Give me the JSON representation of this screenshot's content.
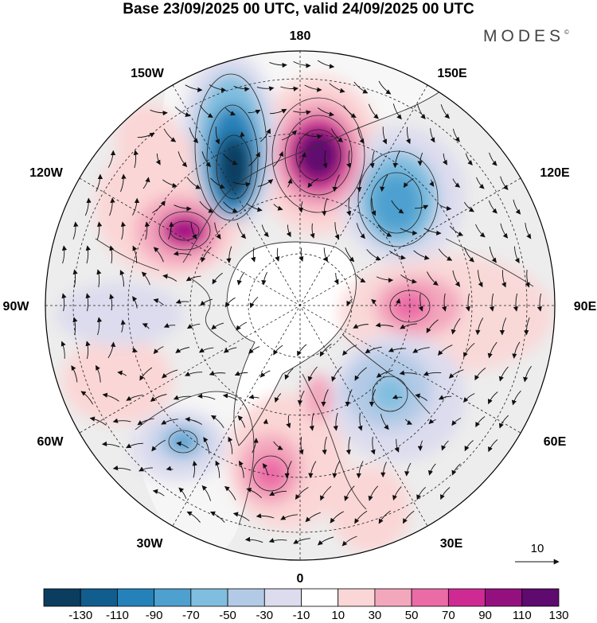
{
  "title": "Base 23/09/2025 00 UTC, valid 24/09/2025 00 UTC",
  "brand": "MODES",
  "brand_mark": "©",
  "longitude_labels": {
    "n180": "180",
    "e150": "150E",
    "e120": "120E",
    "e90": "90E",
    "e60": "60E",
    "e30": "30E",
    "n0": "0",
    "w30": "30W",
    "w60": "60W",
    "w90": "90W",
    "w120": "120W",
    "w150": "150W"
  },
  "reference_vector": {
    "label": "10",
    "icon": "reference-arrow-icon"
  },
  "colorbar": {
    "labels": [
      "-130",
      "-110",
      "-90",
      "-70",
      "-50",
      "-30",
      "-10",
      "10",
      "30",
      "50",
      "70",
      "90",
      "110",
      "130"
    ],
    "colors": [
      "#0b3d5e",
      "#115d8e",
      "#2581b9",
      "#4ea0cf",
      "#80bedf",
      "#b3cae6",
      "#dcdcee",
      "#ffffff",
      "#fbd6d6",
      "#f3a7bd",
      "#eb6ba6",
      "#cf2a93",
      "#95107f",
      "#5e0a6e"
    ]
  },
  "colors": {
    "land": "#ededed",
    "ocean": "#ffffff",
    "coast": "#333333",
    "grid": "#222222"
  }
}
